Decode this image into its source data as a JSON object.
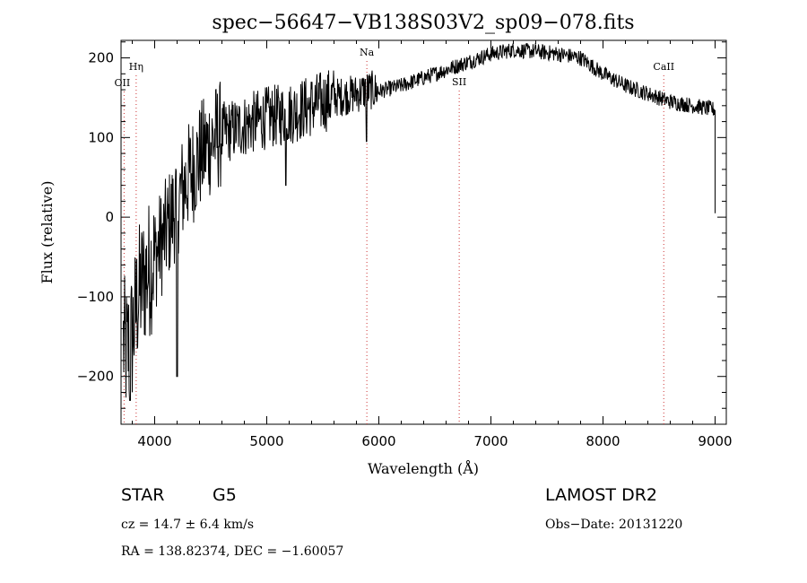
{
  "chart_data": {
    "type": "line",
    "title": "spec−56647−VB138S03V2_sp09−078.fits",
    "xlabel": "Wavelength (Å)",
    "ylabel": "Flux (relative)",
    "xlim": [
      3700,
      9100
    ],
    "ylim": [
      -260,
      222
    ],
    "xticks": [
      4000,
      5000,
      6000,
      7000,
      8000,
      9000
    ],
    "xtick_labels": [
      "4000",
      "5000",
      "6000",
      "7000",
      "8000",
      "9000"
    ],
    "yticks": [
      -200,
      -100,
      0,
      100,
      200
    ],
    "ytick_labels": [
      "−200",
      "−100",
      "0",
      "100",
      "200"
    ],
    "grid": false,
    "spectrum_envelope": {
      "x": [
        3700,
        3750,
        3800,
        3850,
        3900,
        4000,
        4100,
        4200,
        4300,
        4400,
        4500,
        4600,
        4800,
        5000,
        5200,
        5400,
        5600,
        5800,
        5900,
        6000,
        6200,
        6400,
        6600,
        6800,
        7000,
        7200,
        7400,
        7600,
        7800,
        8000,
        8200,
        8400,
        8600,
        8800,
        9000
      ],
      "y": [
        -150,
        -170,
        -150,
        -100,
        -80,
        -50,
        -20,
        20,
        50,
        75,
        95,
        105,
        115,
        125,
        130,
        140,
        150,
        155,
        160,
        158,
        165,
        175,
        185,
        195,
        205,
        210,
        208,
        205,
        200,
        180,
        165,
        155,
        145,
        140,
        135
      ]
    },
    "dips": [
      {
        "x": 5170,
        "y": 40
      },
      {
        "x": 5890,
        "y": 95
      },
      {
        "x": 4200,
        "y": -200
      },
      {
        "x": 3780,
        "y": -230
      }
    ],
    "spectral_lines": [
      {
        "name": "OII",
        "x": 3727
      },
      {
        "name": "Hη",
        "x": 3835
      },
      {
        "name": "Na",
        "x": 5893
      },
      {
        "name": "SII",
        "x": 6717
      },
      {
        "name": "CaII",
        "x": 8542
      }
    ]
  },
  "info": {
    "class_label": "STAR",
    "subclass_label": "G5",
    "cz_text": "cz = 14.7 ± 6.4 km/s",
    "radec_text": "RA = 138.82374, DEC =  −1.60057",
    "survey_label": "LAMOST DR2",
    "obs_date_text": "Obs−Date: 20131220"
  },
  "colors": {
    "spectrum": "#000000",
    "line_markers": "#cc3333",
    "axes": "#000000"
  }
}
